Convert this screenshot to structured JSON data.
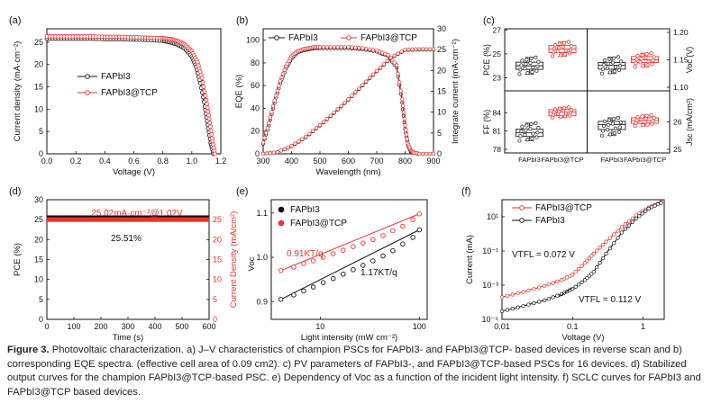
{
  "colors": {
    "black": "#111111",
    "red": "#e8322c",
    "redLine": "#d62320",
    "box": "#222222"
  },
  "caption": {
    "lead": "Figure 3.",
    "text": " Photovoltaic characterization. a) J–V characteristics of champion PSCs for FAPbI3- and FAPbI3@TCP- based devices in reverse scan and b) corresponding EQE spectra. (effective cell area of 0.09 cm2). c) PV parameters of FAPbI3-, and FAPbI3@TCP-based PSCs for 16 devices. d) Stabilized output curves for the champion FAPbI3@TCP-based PSC. e) Dependency of Voc as a function of the incident light intensity. f) SCLC curves for FAPbI3 and FAPbI3@TCP based devices."
  },
  "chart_data": [
    {
      "panel": "(a)",
      "type": "line",
      "xlabel": "Voltage (V)",
      "ylabel": "Current density (mA·cm⁻²)",
      "xlim": [
        0.0,
        1.2
      ],
      "ylim": [
        0,
        28
      ],
      "xticks": [
        "0.0",
        "0.2",
        "0.4",
        "0.6",
        "0.8",
        "1.0",
        "1.2"
      ],
      "yticks": [
        "0",
        "5",
        "10",
        "15",
        "20",
        "25"
      ],
      "legend": [
        "FAPbI3",
        "FAPbI3@TCP"
      ],
      "legend_position": "middle-left",
      "series": [
        {
          "name": "FAPbI3",
          "color": "#111111",
          "x": [
            0.0,
            0.1,
            0.2,
            0.3,
            0.4,
            0.5,
            0.6,
            0.7,
            0.8,
            0.85,
            0.9,
            0.95,
            1.0,
            1.03,
            1.06,
            1.09,
            1.11,
            1.13,
            1.15
          ],
          "y": [
            25.8,
            25.8,
            25.8,
            25.8,
            25.7,
            25.7,
            25.6,
            25.5,
            25.3,
            25.0,
            24.5,
            23.6,
            21.8,
            19.5,
            15.8,
            10.6,
            6.5,
            2.5,
            0.0
          ]
        },
        {
          "name": "FAPbI3@TCP",
          "color": "#e8322c",
          "x": [
            0.0,
            0.1,
            0.2,
            0.3,
            0.4,
            0.5,
            0.6,
            0.7,
            0.8,
            0.85,
            0.9,
            0.95,
            1.0,
            1.04,
            1.07,
            1.1,
            1.12,
            1.14,
            1.16
          ],
          "y": [
            26.3,
            26.3,
            26.3,
            26.3,
            26.2,
            26.2,
            26.1,
            26.0,
            25.9,
            25.7,
            25.3,
            24.5,
            23.0,
            20.5,
            17.0,
            12.0,
            7.8,
            3.5,
            0.0
          ]
        }
      ]
    },
    {
      "panel": "(b)",
      "type": "line",
      "xlabel": "Wavelength (nm)",
      "ylabel": "EQE (%)",
      "y2label": "Integrate current (mA·cm⁻²)",
      "xlim": [
        300,
        900
      ],
      "ylim": [
        0,
        110
      ],
      "y2lim": [
        0,
        30
      ],
      "xticks": [
        "300",
        "400",
        "500",
        "600",
        "700",
        "800",
        "900"
      ],
      "yticks": [
        "0",
        "20",
        "40",
        "60",
        "80",
        "100"
      ],
      "y2ticks": [
        "0",
        "5",
        "10",
        "15",
        "20",
        "25",
        "30"
      ],
      "legend": [
        "FAPbI3",
        "FAPbI3@TCP"
      ],
      "legend_position": "top",
      "series": [
        {
          "name": "FAPbI3 EQE",
          "color": "#111111",
          "x": [
            300,
            320,
            340,
            360,
            380,
            400,
            420,
            440,
            460,
            480,
            500,
            550,
            600,
            650,
            700,
            740,
            770,
            790,
            800,
            810,
            820,
            830,
            850,
            900
          ],
          "y": [
            9,
            25,
            45,
            62,
            75,
            84,
            89,
            91,
            92,
            93,
            93,
            93,
            93,
            92,
            90,
            86,
            76,
            45,
            22,
            8,
            2,
            1,
            0,
            0
          ]
        },
        {
          "name": "FAPbI3@TCP EQE",
          "color": "#e8322c",
          "x": [
            300,
            320,
            340,
            360,
            380,
            400,
            420,
            440,
            460,
            480,
            500,
            550,
            600,
            650,
            700,
            740,
            770,
            790,
            800,
            810,
            820,
            830,
            850,
            900
          ],
          "y": [
            10,
            27,
            47,
            64,
            77,
            86,
            90,
            92,
            93,
            94,
            94,
            94,
            94,
            93,
            91,
            87,
            78,
            48,
            25,
            9,
            3,
            1,
            0,
            0
          ]
        },
        {
          "name": "FAPbI3 Jint",
          "color": "#111111",
          "axis": "right",
          "x": [
            300,
            350,
            400,
            450,
            500,
            550,
            600,
            650,
            700,
            750,
            800,
            850,
            900
          ],
          "y": [
            0,
            0.4,
            1.8,
            4.0,
            6.8,
            9.8,
            13.0,
            16.4,
            19.8,
            23.0,
            24.9,
            25.0,
            25.0
          ]
        },
        {
          "name": "FAPbI3@TCP Jint",
          "color": "#e8322c",
          "axis": "right",
          "x": [
            300,
            350,
            400,
            450,
            500,
            550,
            600,
            650,
            700,
            750,
            800,
            850,
            900
          ],
          "y": [
            0,
            0.4,
            1.9,
            4.1,
            6.9,
            9.9,
            13.1,
            16.5,
            19.9,
            23.1,
            25.0,
            25.1,
            25.1
          ]
        }
      ]
    },
    {
      "panel": "(c)",
      "type": "box",
      "categories": [
        "FAPbI3",
        "FAPbI3@TCP"
      ],
      "subplots": [
        {
          "name": "PCE (%)",
          "ylim": [
            22.2,
            26.8
          ],
          "yticks": [
            "23",
            "25",
            "27"
          ],
          "boxes": [
            {
              "q1": 23.7,
              "median": 24.0,
              "q3": 24.3,
              "min": 23.3,
              "max": 24.7
            },
            {
              "q1": 25.1,
              "median": 25.4,
              "q3": 25.7,
              "min": 24.8,
              "max": 26.0
            }
          ]
        },
        {
          "name": "Voc (V)",
          "ylim": [
            1.1,
            1.2
          ],
          "yticks": [
            "1.10",
            "1.15",
            "1.20"
          ],
          "boxes": [
            {
              "q1": 1.133,
              "median": 1.14,
              "q3": 1.145,
              "min": 1.125,
              "max": 1.155
            },
            {
              "q1": 1.145,
              "median": 1.15,
              "q3": 1.156,
              "min": 1.137,
              "max": 1.162
            }
          ]
        },
        {
          "name": "FF (%)",
          "ylim": [
            78,
            87
          ],
          "yticks": [
            "78",
            "81",
            "84"
          ],
          "boxes": [
            {
              "q1": 80.1,
              "median": 80.7,
              "q3": 81.3,
              "min": 79.4,
              "max": 82.3
            },
            {
              "q1": 83.5,
              "median": 84.1,
              "q3": 84.5,
              "min": 83.2,
              "max": 84.9
            }
          ]
        },
        {
          "name": "Jsc (mA/cm²)",
          "ylim": [
            25,
            27
          ],
          "yticks": [
            "25",
            "26"
          ],
          "boxes": [
            {
              "q1": 25.72,
              "median": 25.9,
              "q3": 26.02,
              "min": 25.5,
              "max": 26.15
            },
            {
              "q1": 25.95,
              "median": 26.05,
              "q3": 26.15,
              "min": 25.85,
              "max": 26.25
            }
          ]
        }
      ]
    },
    {
      "panel": "(d)",
      "type": "line",
      "xlabel": "Time (s)",
      "ylabel": "PCE (%)",
      "y2label": "Current Density (mA/cm²)",
      "xlim": [
        0,
        600
      ],
      "ylim": [
        0,
        30
      ],
      "y2lim": [
        0,
        30
      ],
      "xticks": [
        "0",
        "100",
        "200",
        "300",
        "400",
        "500",
        "600"
      ],
      "yticks": [
        "0",
        "5",
        "10",
        "15",
        "20",
        "25",
        "30"
      ],
      "y2ticks": [
        "0",
        "5",
        "10",
        "15",
        "20",
        "25"
      ],
      "annotations": [
        "25.02mA·cm⁻²@1.02V",
        "25.51%"
      ],
      "series": [
        {
          "name": "PCE",
          "color": "#111111",
          "x": [
            0,
            600
          ],
          "y": [
            25.5,
            25.5
          ]
        },
        {
          "name": "Current density",
          "color": "#e8322c",
          "axis": "right",
          "x": [
            0,
            600
          ],
          "y": [
            25.0,
            25.0
          ]
        }
      ]
    },
    {
      "panel": "(e)",
      "type": "scatter",
      "xscale": "log",
      "xlabel": "Light intensity (mW cm⁻²)",
      "ylabel": "Voc",
      "xlim": [
        3.2,
        120
      ],
      "ylim": [
        0.86,
        1.13
      ],
      "xticks": [
        "10",
        "100"
      ],
      "yticks": [
        "0.9",
        "1.0",
        "1.1"
      ],
      "legend": [
        "FAPbI3",
        "FAPbI3@TCP"
      ],
      "legend_position": "top-left",
      "annotations": [
        "0.91KT/q",
        "1.17KT/q"
      ],
      "series": [
        {
          "name": "FAPbI3",
          "color": "#111111",
          "x": [
            4.0,
            5.4,
            6.8,
            8.5,
            10.7,
            13.5,
            17,
            21.5,
            27,
            34,
            43,
            54,
            68,
            86,
            100
          ],
          "y": [
            0.905,
            0.915,
            0.924,
            0.933,
            0.943,
            0.952,
            0.962,
            0.972,
            0.982,
            0.992,
            1.003,
            1.015,
            1.03,
            1.045,
            1.062
          ]
        },
        {
          "name": "FAPbI3@TCP",
          "color": "#e8322c",
          "x": [
            4.0,
            5.4,
            6.8,
            8.5,
            10.7,
            13.5,
            17,
            21.5,
            27,
            34,
            43,
            54,
            68,
            86,
            100
          ],
          "y": [
            0.97,
            0.978,
            0.986,
            0.992,
            1.0,
            1.008,
            1.016,
            1.024,
            1.032,
            1.04,
            1.049,
            1.06,
            1.07,
            1.085,
            1.098
          ]
        }
      ]
    },
    {
      "panel": "(f)",
      "type": "line",
      "xscale": "log",
      "yscale": "log",
      "xlabel": "Voltage (V)",
      "ylabel": "Current (mA)",
      "xlim": [
        0.01,
        2
      ],
      "ylim": [
        1e-05,
        100
      ],
      "xticks": [
        "0.01",
        "0.1",
        "1"
      ],
      "yticks": [
        "10⁻⁵",
        "10⁻³",
        "10⁻¹",
        "10¹"
      ],
      "legend": [
        "FAPbI3@TCP",
        "FAPbI3"
      ],
      "legend_position": "top-left",
      "annotations": [
        "VTFL = 0.072 V",
        "VTFL = 0.112 V"
      ],
      "series": [
        {
          "name": "FAPbI3@TCP",
          "color": "#e8322c",
          "x": [
            0.01,
            0.02,
            0.04,
            0.07,
            0.1,
            0.15,
            0.2,
            0.3,
            0.5,
            0.8,
            1.2,
            1.8
          ],
          "y": [
            0.0002,
            0.0004,
            0.0009,
            0.002,
            0.004,
            0.02,
            0.07,
            0.35,
            2.5,
            12,
            35,
            70
          ]
        },
        {
          "name": "FAPbI3",
          "color": "#111111",
          "x": [
            0.01,
            0.02,
            0.04,
            0.07,
            0.1,
            0.15,
            0.2,
            0.3,
            0.5,
            0.8,
            1.2,
            1.8
          ],
          "y": [
            3e-05,
            6e-05,
            0.00013,
            0.0003,
            0.0006,
            0.002,
            0.006,
            0.07,
            1.2,
            8,
            30,
            65
          ]
        }
      ]
    }
  ]
}
